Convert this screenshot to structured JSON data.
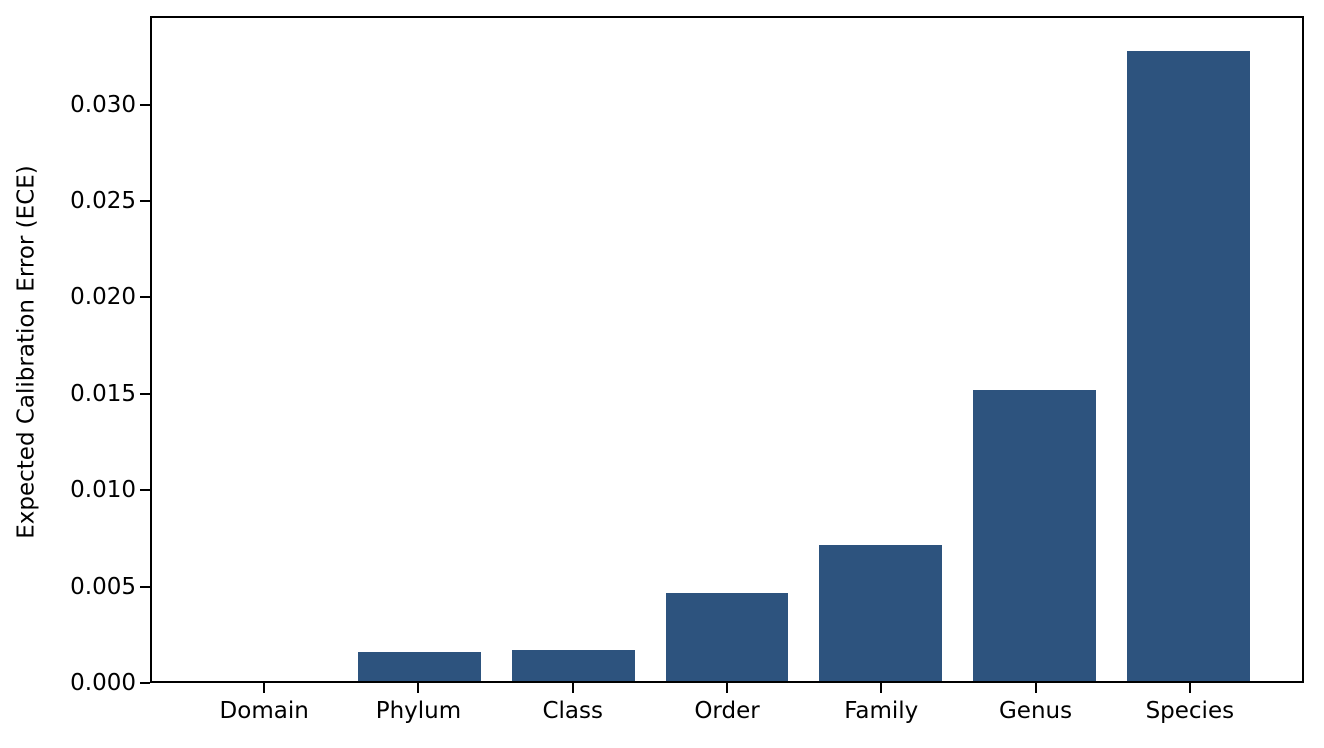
{
  "figure": {
    "background": "#ffffff",
    "spine_color": "#000000",
    "tick_color": "#000000",
    "text_color": "#000000"
  },
  "chart_data": {
    "type": "bar",
    "title": "",
    "xlabel": "",
    "ylabel": "Expected Calibration Error (ECE)",
    "categories": [
      "Domain",
      "Phylum",
      "Class",
      "Order",
      "Family",
      "Genus",
      "Species"
    ],
    "values": [
      0.0,
      0.0015,
      0.0016,
      0.0046,
      0.0071,
      0.0152,
      0.0329
    ],
    "bar_color": "#2d537e",
    "bar_width": 0.8,
    "xlim": [
      -0.74,
      6.74
    ],
    "ylim": [
      0,
      0.0346
    ],
    "yticks": [
      {
        "value": 0.0,
        "label": "0.000"
      },
      {
        "value": 0.005,
        "label": "0.005"
      },
      {
        "value": 0.01,
        "label": "0.010"
      },
      {
        "value": 0.015,
        "label": "0.015"
      },
      {
        "value": 0.02,
        "label": "0.020"
      },
      {
        "value": 0.025,
        "label": "0.025"
      },
      {
        "value": 0.03,
        "label": "0.030"
      }
    ],
    "grid": false,
    "legend": null
  }
}
